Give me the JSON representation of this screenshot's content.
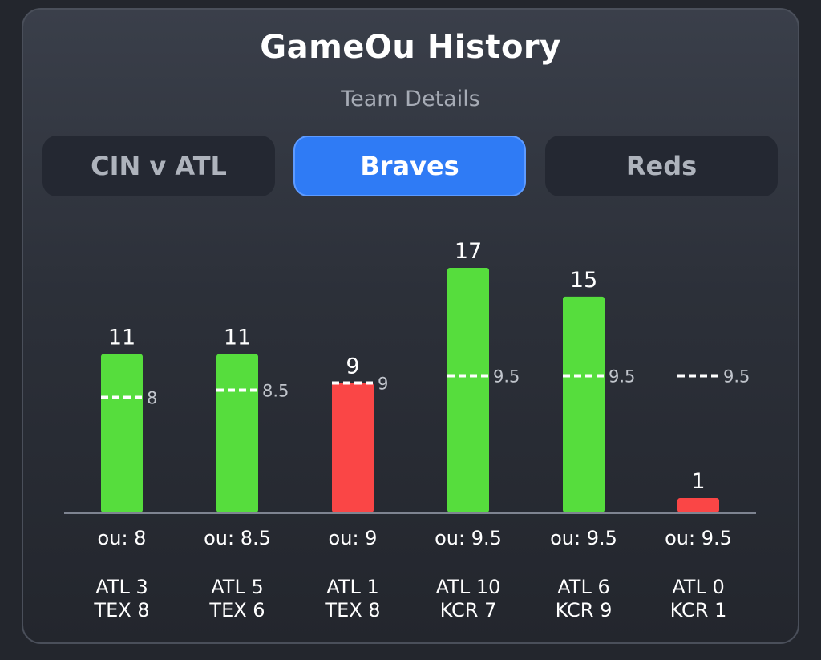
{
  "header": {
    "title": "GameOu History",
    "subtitle": "Team Details"
  },
  "tabs": [
    {
      "label": "CIN v ATL",
      "active": false
    },
    {
      "label": "Braves",
      "active": true
    },
    {
      "label": "Reds",
      "active": false
    }
  ],
  "colors": {
    "over": "#56dd3d",
    "under": "#fa4646",
    "accent": "#2f7bf5"
  },
  "chart_data": {
    "type": "bar",
    "categories": [
      "ATL 3 TEX 8",
      "ATL 5 TEX 6",
      "ATL 1 TEX 8",
      "ATL 10 KCR 7",
      "ATL 6 KCR 9",
      "ATL 0 KCR 1"
    ],
    "values": [
      11,
      11,
      9,
      17,
      15,
      1
    ],
    "value_labels": [
      "11",
      "11",
      "9",
      "17",
      "15",
      "1"
    ],
    "ou_lines": [
      8,
      8.5,
      9,
      9.5,
      9.5,
      9.5
    ],
    "ou_line_labels": [
      "8",
      "8.5",
      "9",
      "9.5",
      "9.5",
      "9.5"
    ],
    "ou_labels": [
      "ou: 8",
      "ou: 8.5",
      "ou: 9",
      "ou: 9.5",
      "ou: 9.5",
      "ou: 9.5"
    ],
    "score_line1": [
      "ATL 3",
      "ATL 5",
      "ATL 1",
      "ATL 10",
      "ATL 6",
      "ATL 0"
    ],
    "score_line2": [
      "TEX 8",
      "TEX 6",
      "TEX 8",
      "KCR 7",
      "KCR 9",
      "KCR 1"
    ],
    "result": [
      "over",
      "over",
      "under",
      "over",
      "over",
      "under"
    ],
    "ylim": [
      0,
      17
    ]
  }
}
